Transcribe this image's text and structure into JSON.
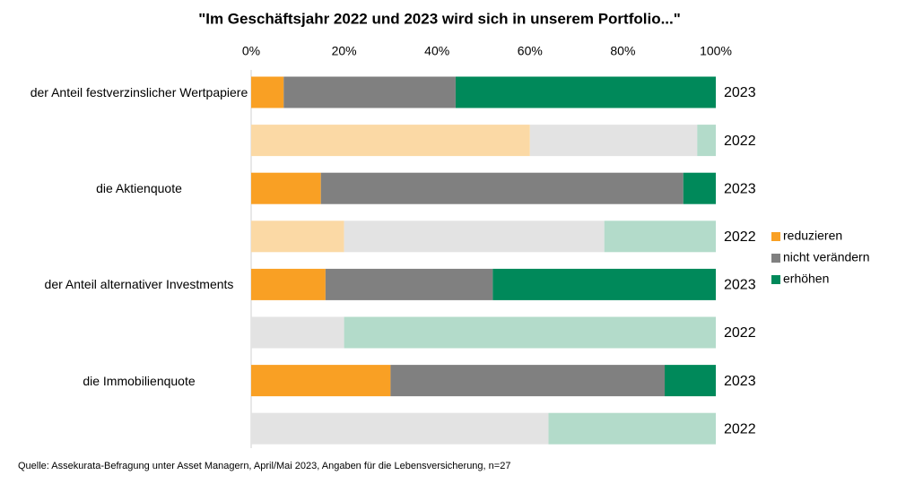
{
  "chart_data": {
    "type": "bar",
    "orientation": "horizontal",
    "stacked": true,
    "title": "\"Im Geschäftsjahr 2022 und 2023 wird sich in unserem Portfolio...\"",
    "source": "Quelle: Assekurata-Befragung unter Asset Managern, April/Mai 2023, Angaben für die Lebensversicherung, n=27",
    "categories": [
      "der Anteil festverzinslicher Wertpapiere",
      null,
      "die Aktienquote",
      null,
      "der Anteil alternativer Investments",
      null,
      "die Immobilienquote",
      null
    ],
    "row_labels": [
      "2023",
      "2022",
      "2023",
      "2022",
      "2023",
      "2022",
      "2023",
      "2022"
    ],
    "faded": [
      false,
      true,
      false,
      true,
      false,
      true,
      false,
      true
    ],
    "series": [
      {
        "name": "reduzieren",
        "color": "#f9a024",
        "faded_color": "#fbd9a5",
        "values": [
          7,
          60,
          15,
          20,
          16,
          0,
          30,
          0
        ]
      },
      {
        "name": "nicht verändern",
        "color": "#808080",
        "faded_color": "#e3e3e3",
        "values": [
          37,
          36,
          78,
          56,
          36,
          20,
          59,
          64
        ]
      },
      {
        "name": "erhöhen",
        "color": "#00895a",
        "faded_color": "#b3dbca",
        "values": [
          56,
          4,
          7,
          24,
          48,
          80,
          11,
          36
        ]
      }
    ],
    "xlim": [
      0,
      100
    ],
    "xticks": [
      {
        "value": 0,
        "label": "0%"
      },
      {
        "value": 20,
        "label": "20%"
      },
      {
        "value": 40,
        "label": "40%"
      },
      {
        "value": 60,
        "label": "60%"
      },
      {
        "value": 80,
        "label": "80%"
      },
      {
        "value": 100,
        "label": "100%"
      }
    ],
    "legend": "right"
  }
}
